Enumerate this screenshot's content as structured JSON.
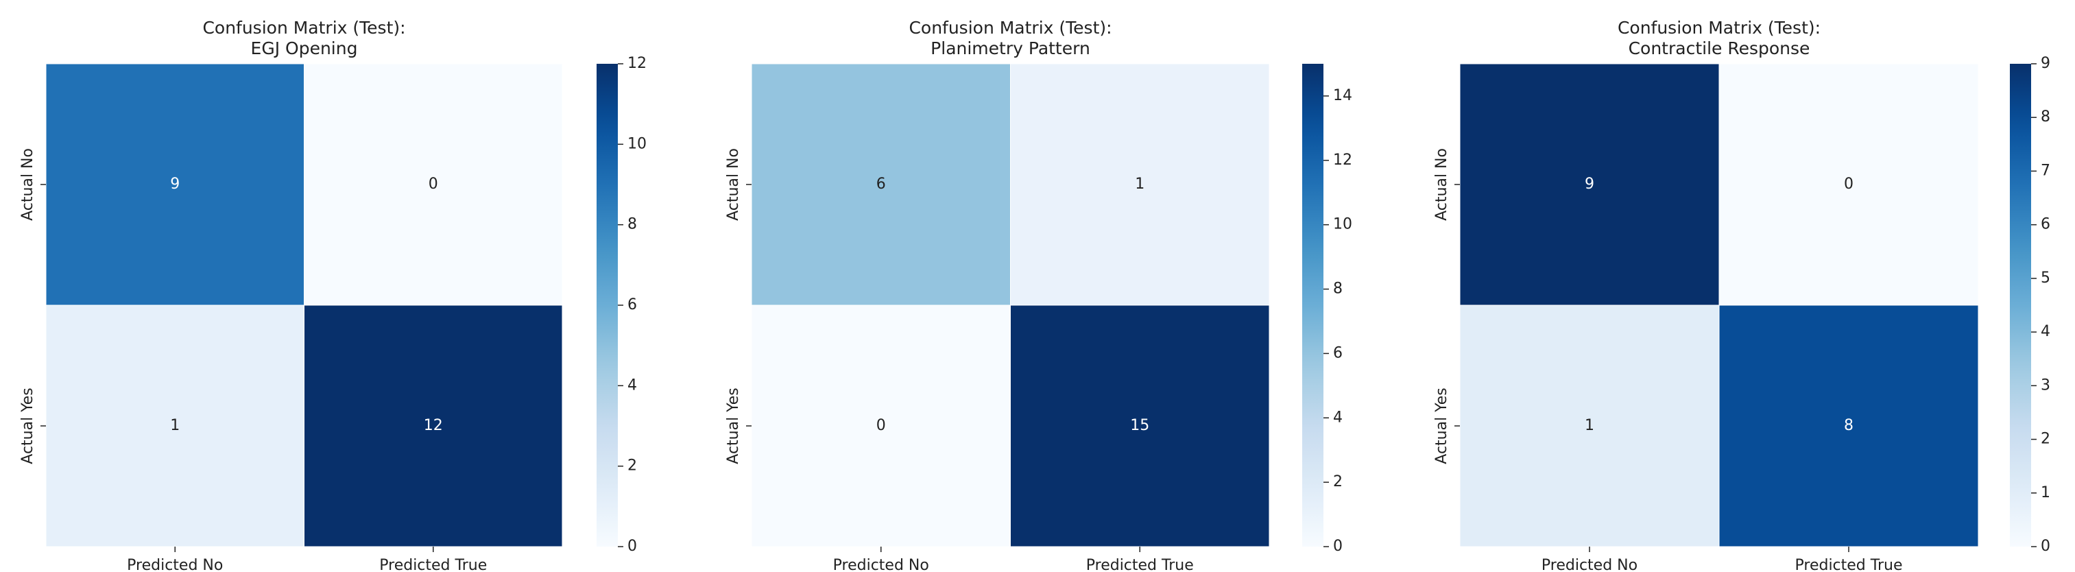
{
  "chart_data": [
    {
      "type": "heatmap",
      "title": "Confusion Matrix (Test):",
      "subtitle": "EGJ Opening",
      "x_categories": [
        "Predicted No",
        "Predicted True"
      ],
      "y_categories": [
        "Actual No",
        "Actual Yes"
      ],
      "values": [
        [
          9,
          0
        ],
        [
          1,
          12
        ]
      ],
      "colormap": "Blues",
      "clim": [
        0,
        12
      ],
      "cticks": [
        0,
        2,
        4,
        6,
        8,
        10,
        12
      ]
    },
    {
      "type": "heatmap",
      "title": "Confusion Matrix (Test):",
      "subtitle": "Planimetry Pattern",
      "x_categories": [
        "Predicted No",
        "Predicted True"
      ],
      "y_categories": [
        "Actual No",
        "Actual Yes"
      ],
      "values": [
        [
          6,
          1
        ],
        [
          0,
          15
        ]
      ],
      "colormap": "Blues",
      "clim": [
        0,
        15
      ],
      "cticks": [
        0,
        2,
        4,
        6,
        8,
        10,
        12,
        14
      ]
    },
    {
      "type": "heatmap",
      "title": "Confusion Matrix (Test):",
      "subtitle": "Contractile Response",
      "x_categories": [
        "Predicted No",
        "Predicted True"
      ],
      "y_categories": [
        "Actual No",
        "Actual Yes"
      ],
      "values": [
        [
          9,
          0
        ],
        [
          1,
          8
        ]
      ],
      "colormap": "Blues",
      "clim": [
        0,
        9
      ],
      "cticks": [
        0,
        1,
        2,
        3,
        4,
        5,
        6,
        7,
        8,
        9
      ]
    }
  ]
}
